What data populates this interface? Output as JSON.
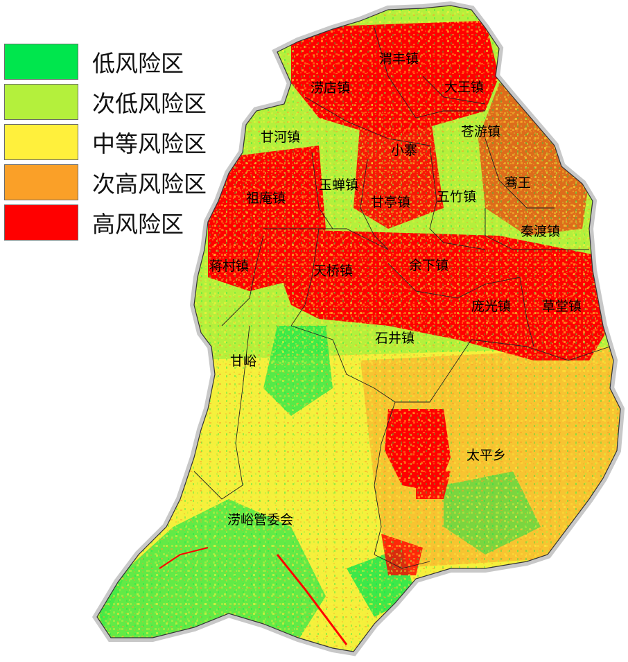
{
  "legend": {
    "items": [
      {
        "label": "低风险区",
        "color": "#00E64D"
      },
      {
        "label": "次低风险区",
        "color": "#B4F03C"
      },
      {
        "label": "中等风险区",
        "color": "#FFF03C"
      },
      {
        "label": "次高风险区",
        "color": "#FAA028"
      },
      {
        "label": "高风险区",
        "color": "#FF0000"
      }
    ]
  },
  "map": {
    "colors": {
      "high": "#FF0000",
      "sub_high": "#FAA028",
      "medium": "#FFF03C",
      "sub_low": "#B4F03C",
      "low": "#00E64D",
      "halo": "#C8C8C8",
      "boundary": "#333333"
    },
    "places": [
      "渭丰镇",
      "涝店镇",
      "大王镇",
      "甘河镇",
      "苍游镇",
      "小寨",
      "玉蝉镇",
      "祖庵镇",
      "甘亭镇",
      "五竹镇",
      "骞王",
      "秦渡镇",
      "蒋村镇",
      "天桥镇",
      "余下镇",
      "庞光镇",
      "草堂镇",
      "石井镇",
      "甘峪",
      "太平乡",
      "涝峪管委会"
    ]
  }
}
